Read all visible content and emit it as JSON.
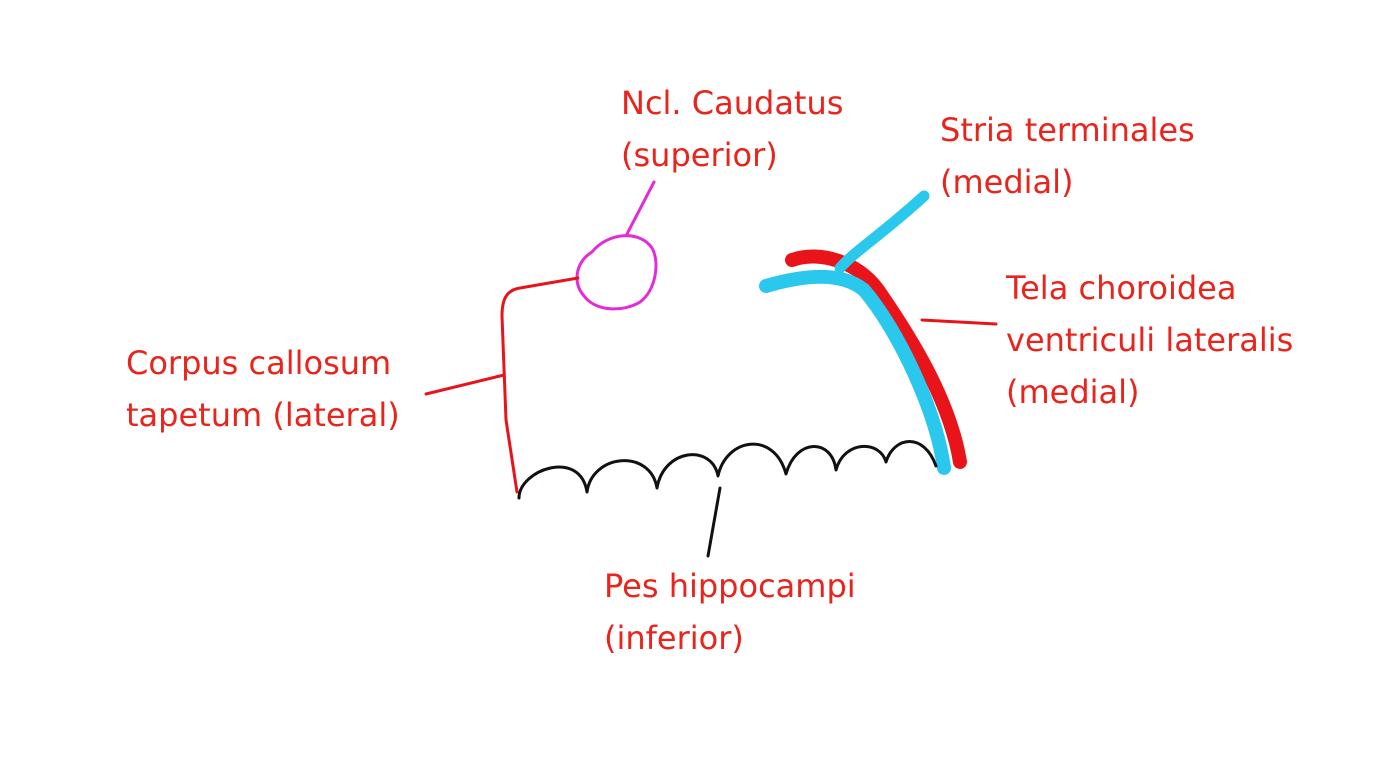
{
  "colors": {
    "label": "#e8241c",
    "caudatus": "#e52ad8",
    "stria": "#29c8ec",
    "tela": "#e8141a",
    "corpus": "#e8141a",
    "pes": "#111111",
    "background": "#ffffff"
  },
  "labels": {
    "caudatus": {
      "line1": "Ncl. Caudatus",
      "line2": "(superior)"
    },
    "stria": {
      "line1": "Stria terminales",
      "line2": "(medial)"
    },
    "tela": {
      "line1": "Tela choroidea",
      "line2": "ventriculi lateralis",
      "line3": "(medial)"
    },
    "corpus": {
      "line1": "Corpus callosum",
      "line2": "tapetum (lateral)"
    },
    "pes": {
      "line1": "Pes hippocampi",
      "line2": "(inferior)"
    }
  }
}
